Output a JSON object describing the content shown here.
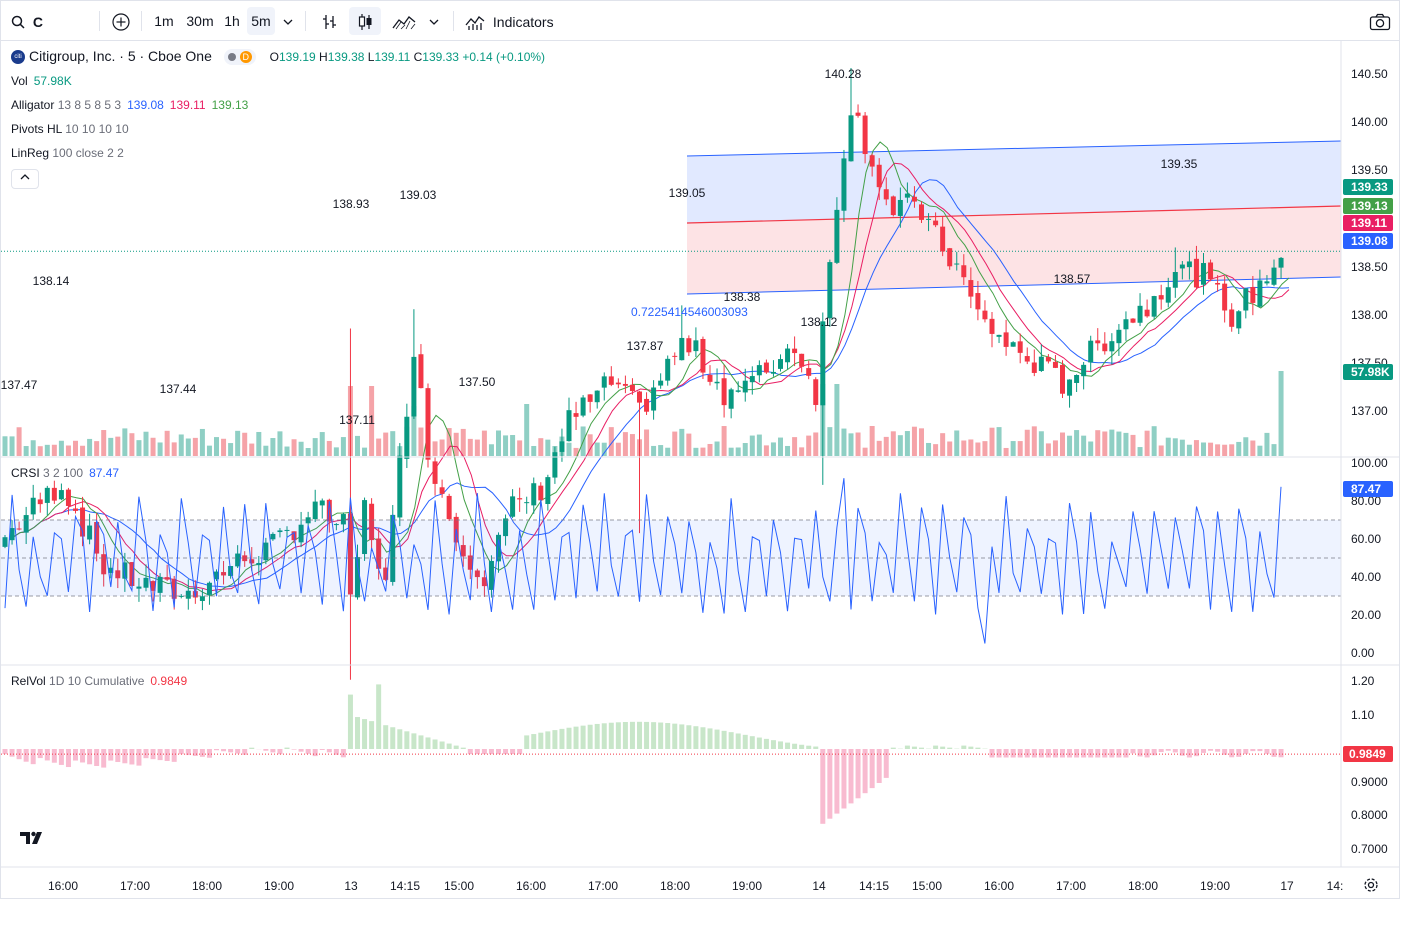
{
  "toolbar": {
    "symbol": "C",
    "intervals": [
      "1m",
      "30m",
      "1h",
      "5m"
    ],
    "active_interval": "5m",
    "indicators_label": "Indicators"
  },
  "legend": {
    "title": "Citigroup, Inc. · 5 · Cboe One",
    "logo_text": "citi",
    "dot_label": "D",
    "open_label": "O",
    "open": "139.19",
    "high_label": "H",
    "high": "139.38",
    "low_label": "L",
    "low": "139.11",
    "close_label": "C",
    "close": "139.33",
    "change": "+0.14 (+0.10%)"
  },
  "indicators": {
    "vol": {
      "name": "Vol",
      "value": "57.98K"
    },
    "alligator": {
      "name": "Alligator",
      "params": "13 8 5 8 5 3",
      "v1": "139.08",
      "v2": "139.11",
      "v3": "139.13"
    },
    "pivots": {
      "name": "Pivots HL",
      "params": "10 10 10 10"
    },
    "linreg": {
      "name": "LinReg",
      "params": "100 close 2 2"
    },
    "crsi": {
      "name": "CRSI",
      "params": "3 2 100",
      "value": "87.47"
    },
    "relvol": {
      "name": "RelVol",
      "params": "1D 10 Cumulative",
      "value": "0.9849"
    }
  },
  "price_axis": {
    "ticks": [
      "140.50",
      "140.00",
      "139.50",
      "138.50",
      "138.00",
      "137.50",
      "137.00"
    ],
    "badges": [
      {
        "text": "139.33",
        "color": "#089981"
      },
      {
        "text": "139.13",
        "color": "#43a047"
      },
      {
        "text": "139.11",
        "color": "#e91e63"
      },
      {
        "text": "139.08",
        "color": "#2962ff"
      },
      {
        "text": "57.98K",
        "color": "#089981"
      }
    ]
  },
  "crsi_axis": {
    "ticks": [
      "100.00",
      "80.00",
      "60.00",
      "40.00",
      "20.00",
      "0.00"
    ],
    "badge": "87.47"
  },
  "relvol_axis": {
    "ticks": [
      "1.20",
      "1.10",
      "0.9000",
      "0.8000",
      "0.7000"
    ],
    "badge": "0.9849"
  },
  "time_axis": {
    "labels": [
      "16:00",
      "17:00",
      "18:00",
      "19:00",
      "13",
      "14:15",
      "15:00",
      "16:00",
      "17:00",
      "18:00",
      "19:00",
      "14",
      "14:15",
      "15:00",
      "16:00",
      "17:00",
      "18:00",
      "19:00",
      "17",
      "14:"
    ]
  },
  "pivot_labels": [
    "138.14",
    "137.47",
    "137.44",
    "138.93",
    "137.11",
    "139.03",
    "137.50",
    "139.05",
    "137.87",
    "138.38",
    "138.12",
    "140.28",
    "139.35",
    "138.57"
  ],
  "linreg_value_text": "0.7225414546003093",
  "colors": {
    "up": "#089981",
    "down": "#f23645",
    "vol_up": "#8fcfc4",
    "vol_down": "#f5a3a8",
    "alligator_jaw": "#2962ff",
    "alligator_teeth": "#e91e63",
    "alligator_lips": "#43a047",
    "crsi": "#2962ff"
  }
}
